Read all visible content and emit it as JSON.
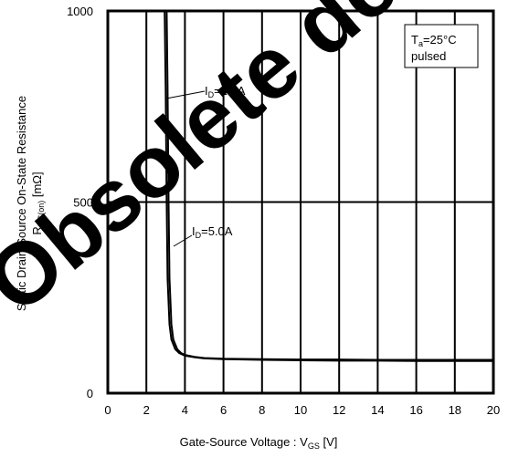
{
  "chart_data": {
    "type": "line",
    "xlabel_main": "Gate-Source Voltage : V",
    "xlabel_sub": "GS",
    "xlabel_unit": " [V]",
    "ylabel_line1": "Static Drain-Source On-State Resistance",
    "ylabel_main": "R",
    "ylabel_sub": "DS(on)",
    "ylabel_unit": " [mΩ]",
    "xlim": [
      0,
      20
    ],
    "ylim": [
      0,
      1000
    ],
    "xticks": [
      0,
      2,
      4,
      6,
      8,
      10,
      12,
      14,
      16,
      18,
      20
    ],
    "yticks": [
      0,
      500,
      1000
    ],
    "grid": true,
    "condition": {
      "line1_main": "T",
      "line1_sub": "a",
      "line1_rest": "=25°C",
      "line2": "pulsed"
    },
    "series": [
      {
        "name_main": "I",
        "name_sub": "D",
        "name_rest": "=2.5A",
        "x": [
          3.05,
          3.1,
          3.15,
          3.2,
          3.3,
          3.4,
          3.6,
          3.8,
          4.0,
          4.5,
          5,
          6,
          8,
          10,
          12,
          14,
          16,
          18,
          20
        ],
        "y": [
          1000,
          800,
          500,
          300,
          180,
          140,
          115,
          105,
          100,
          95,
          92,
          90,
          89,
          88,
          88,
          87,
          87,
          87,
          87
        ]
      },
      {
        "name_main": "I",
        "name_sub": "D",
        "name_rest": "=5.0A",
        "x": [
          2.95,
          3.0,
          3.05,
          3.1,
          3.2,
          3.3,
          3.5,
          3.7,
          4.0,
          4.5,
          5,
          6,
          8,
          10,
          12,
          14,
          16,
          18,
          20
        ],
        "y": [
          1000,
          800,
          500,
          300,
          180,
          140,
          115,
          105,
          98,
          94,
          91,
          89,
          87,
          86,
          85,
          85,
          84,
          84,
          84
        ]
      }
    ],
    "watermark": "Obsolete designs"
  }
}
